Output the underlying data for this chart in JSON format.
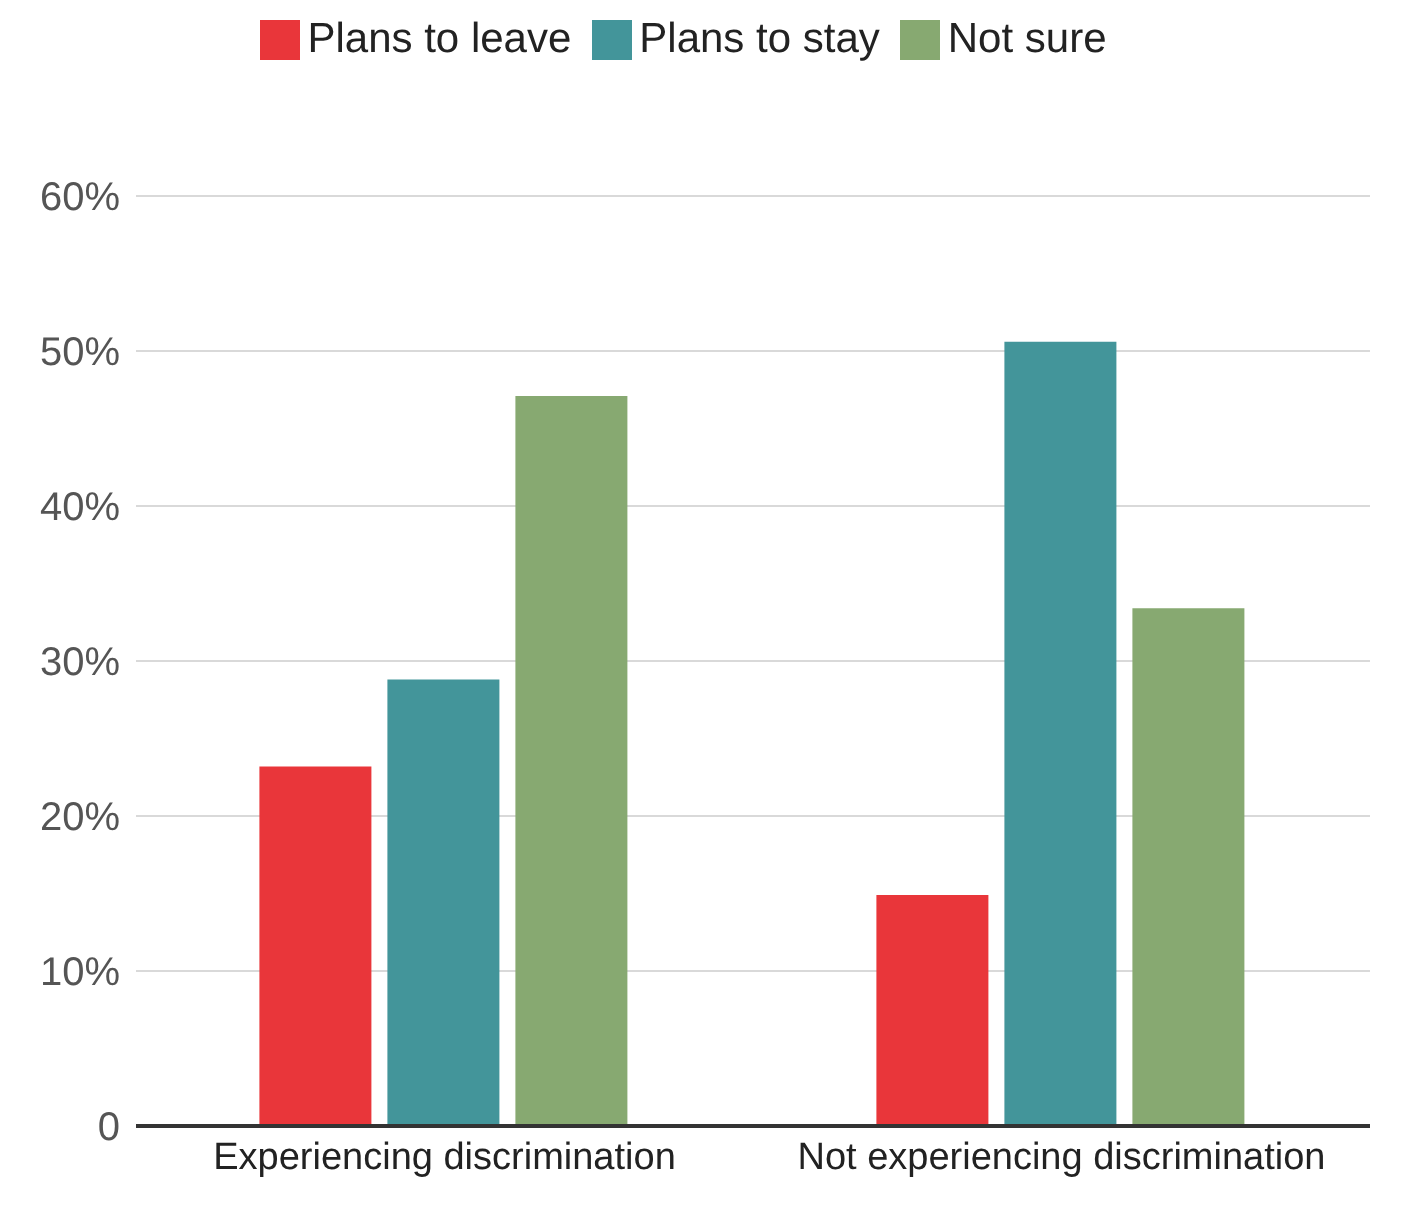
{
  "chart_data": {
    "type": "bar",
    "categories": [
      "Experiencing discrimination",
      "Not experiencing discrimination"
    ],
    "series": [
      {
        "name": "Plans to leave",
        "color": "#e9363a",
        "values": [
          23.2,
          14.9
        ]
      },
      {
        "name": "Plans to stay",
        "color": "#43959a",
        "values": [
          28.8,
          50.6
        ]
      },
      {
        "name": "Not sure",
        "color": "#87a971",
        "values": [
          47.1,
          33.4
        ]
      }
    ],
    "ylim": [
      0,
      60
    ],
    "yticks": [
      0,
      {
        "value": 10,
        "label": "10%"
      },
      {
        "value": 20,
        "label": "20%"
      },
      {
        "value": 30,
        "label": "30%"
      },
      {
        "value": 40,
        "label": "40%"
      },
      {
        "value": 50,
        "label": "50%"
      },
      {
        "value": 60,
        "label": "60%"
      }
    ],
    "grid": "y",
    "legend": "top"
  }
}
